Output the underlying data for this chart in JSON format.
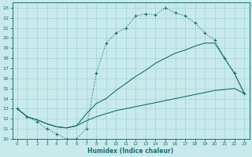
{
  "xlabel": "Humidex (Indice chaleur)",
  "bg_color": "#c8eaea",
  "grid_color": "#a8d8d8",
  "line_color": "#1a7070",
  "xlim": [
    -0.5,
    23.5
  ],
  "ylim": [
    10,
    23.5
  ],
  "xticks": [
    0,
    1,
    2,
    3,
    4,
    5,
    6,
    7,
    8,
    9,
    10,
    11,
    12,
    13,
    14,
    15,
    16,
    17,
    18,
    19,
    20,
    21,
    22,
    23
  ],
  "yticks": [
    10,
    11,
    12,
    13,
    14,
    15,
    16,
    17,
    18,
    19,
    20,
    21,
    22,
    23
  ],
  "curve1_x": [
    0,
    1,
    2,
    3,
    4,
    5,
    6,
    7,
    8,
    9,
    10,
    11,
    12,
    13,
    14,
    15,
    16,
    17,
    18,
    19,
    20,
    21,
    22,
    23
  ],
  "curve1_y": [
    13.0,
    12.2,
    11.7,
    11.0,
    10.5,
    10.0,
    10.0,
    11.0,
    16.5,
    19.5,
    20.5,
    21.0,
    22.2,
    22.4,
    22.3,
    23.0,
    22.5,
    22.2,
    21.5,
    20.5,
    19.8,
    18.0,
    16.5,
    14.5
  ],
  "curve2_x": [
    0,
    1,
    2,
    3,
    4,
    5,
    6,
    7,
    8,
    9,
    10,
    11,
    12,
    13,
    14,
    15,
    16,
    17,
    18,
    19,
    20,
    21,
    22,
    23
  ],
  "curve2_y": [
    13.0,
    12.2,
    11.9,
    11.5,
    11.2,
    11.1,
    11.3,
    12.5,
    13.5,
    14.0,
    14.8,
    15.5,
    16.2,
    16.8,
    17.5,
    18.0,
    18.5,
    18.8,
    19.2,
    19.5,
    19.5,
    18.0,
    16.5,
    14.5
  ],
  "curve3_x": [
    0,
    1,
    2,
    3,
    4,
    5,
    6,
    7,
    8,
    9,
    10,
    11,
    12,
    13,
    14,
    15,
    16,
    17,
    18,
    19,
    20,
    21,
    22,
    23
  ],
  "curve3_y": [
    13.0,
    12.2,
    11.9,
    11.5,
    11.2,
    11.1,
    11.3,
    11.8,
    12.2,
    12.5,
    12.8,
    13.0,
    13.2,
    13.4,
    13.6,
    13.8,
    14.0,
    14.2,
    14.4,
    14.6,
    14.8,
    14.9,
    15.0,
    14.5
  ]
}
